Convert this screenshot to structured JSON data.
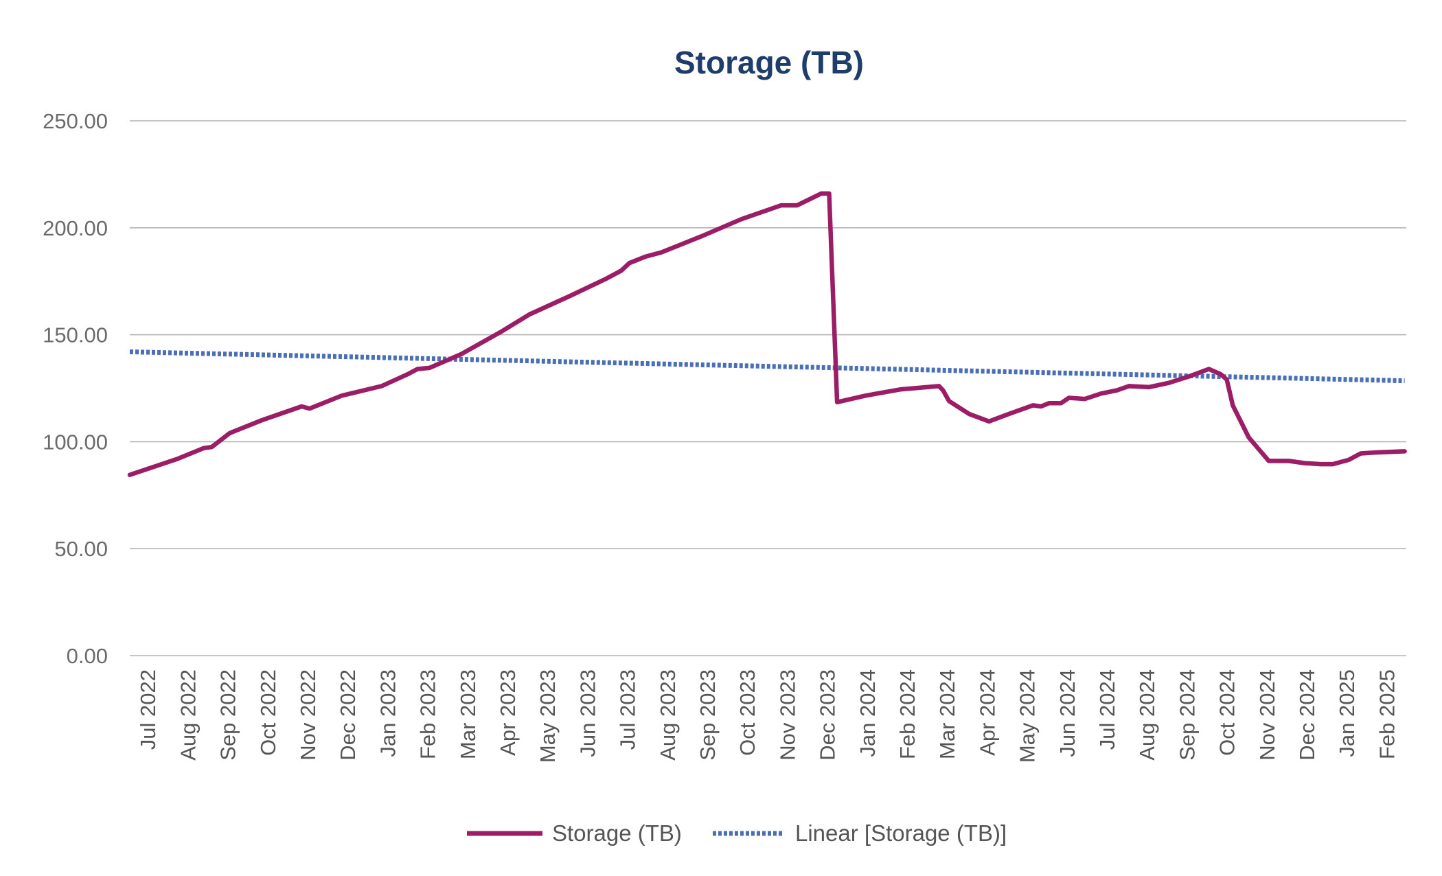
{
  "chart_data": {
    "type": "line",
    "title": "Storage (TB)",
    "xlabel": "",
    "ylabel": "",
    "ylim": [
      0,
      250
    ],
    "yticks": [
      "0.00",
      "50.00",
      "100.00",
      "150.00",
      "200.00",
      "250.00"
    ],
    "yticks_values": [
      0,
      50,
      100,
      150,
      200,
      250
    ],
    "x_range": [
      0,
      31.9
    ],
    "categories": [
      "Jul 2022",
      "Aug 2022",
      "Sep 2022",
      "Oct 2022",
      "Nov 2022",
      "Dec 2022",
      "Jan 2023",
      "Feb 2023",
      "Mar 2023",
      "Apr 2023",
      "May 2023",
      "Jun 2023",
      "Jul 2023",
      "Aug 2023",
      "Sep 2023",
      "Oct 2023",
      "Nov 2023",
      "Dec 2023",
      "Jan 2024",
      "Feb 2024",
      "Mar 2024",
      "Apr 2024",
      "May 2024",
      "Jun 2024",
      "Jul 2024",
      "Aug 2024",
      "Sep 2024",
      "Oct 2024",
      "Nov 2024",
      "Dec 2024",
      "Jan 2025",
      "Feb 2025"
    ],
    "grid": true,
    "legend_position": "bottom",
    "colors": {
      "storage": "#9b1d66",
      "trend": "#4a6fb5",
      "title": "#1f3d6b",
      "grid": "#b3b3b3"
    },
    "series": [
      {
        "name": "Storage (TB)",
        "style": "solid",
        "x": [
          0,
          1.2,
          1.85,
          2.05,
          2.5,
          3.3,
          4.3,
          4.5,
          5.3,
          6.3,
          6.95,
          7.2,
          7.5,
          8.3,
          9.3,
          10.0,
          11.0,
          11.9,
          12.3,
          12.5,
          12.9,
          13.3,
          14.3,
          15.3,
          16.3,
          16.7,
          17.3,
          17.5,
          17.7,
          18.4,
          19.3,
          20.25,
          20.35,
          20.5,
          21.0,
          21.5,
          22.0,
          22.6,
          22.8,
          23.0,
          23.3,
          23.5,
          23.9,
          24.3,
          24.7,
          25.0,
          25.5,
          26.0,
          26.5,
          27.0,
          27.3,
          27.45,
          27.6,
          28.0,
          28.5,
          29.0,
          29.4,
          29.8,
          30.1,
          30.5,
          30.8,
          31.2,
          31.9
        ],
        "values": [
          84.5,
          92,
          97,
          97.5,
          104,
          110,
          116.5,
          115.5,
          121.5,
          126,
          131.5,
          134,
          134.5,
          141,
          151.5,
          159.5,
          168,
          176,
          180,
          183.5,
          186.5,
          188.5,
          196,
          204,
          210.5,
          210.5,
          216,
          216,
          118.5,
          121.5,
          124.5,
          126,
          124,
          119,
          113,
          109.5,
          113,
          117,
          116.5,
          118,
          118,
          120.5,
          120,
          122.5,
          124,
          126,
          125.5,
          127.5,
          130.5,
          134,
          131.5,
          129,
          117,
          102,
          91,
          91,
          90,
          89.5,
          89.5,
          91.5,
          94.5,
          95,
          95.5
        ]
      },
      {
        "name": "Linear [Storage (TB)]",
        "style": "dotted",
        "x": [
          0,
          31.9
        ],
        "values": [
          142,
          128.5
        ]
      }
    ]
  }
}
